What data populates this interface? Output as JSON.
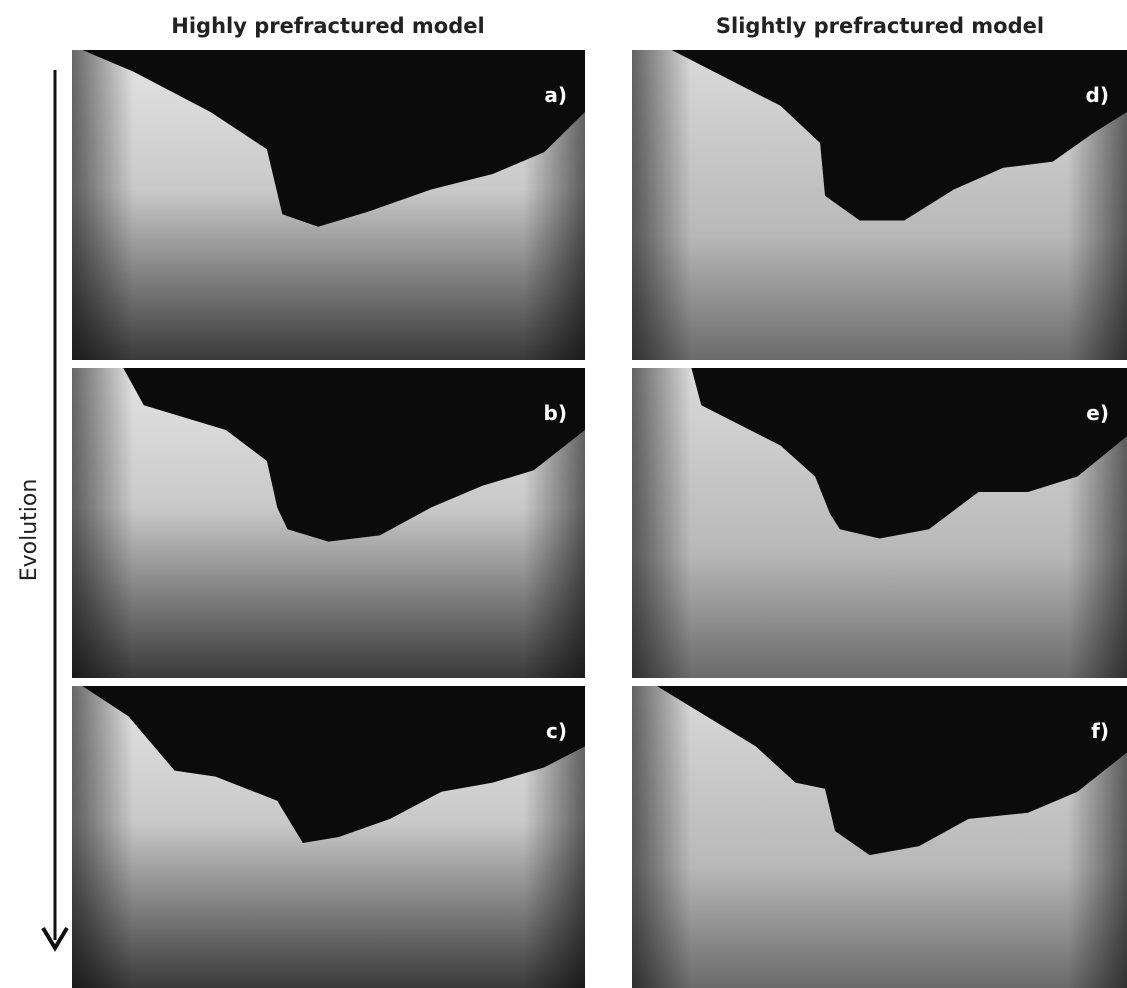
{
  "columns": [
    {
      "title": "Highly prefractured model",
      "panels": [
        "a)",
        "b)",
        "c)"
      ]
    },
    {
      "title": "Slightly prefractured model",
      "panels": [
        "d)",
        "e)",
        "f)"
      ]
    }
  ],
  "axis_label": "Evolution"
}
